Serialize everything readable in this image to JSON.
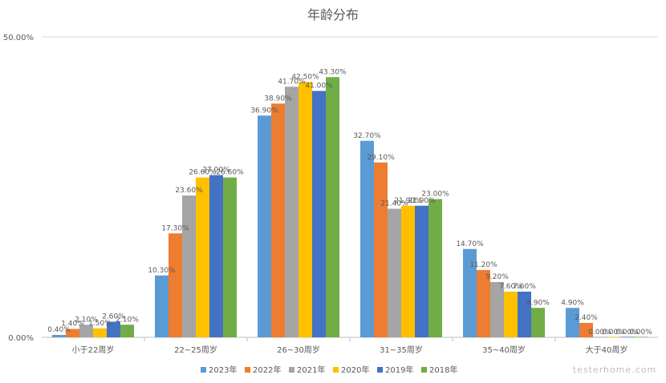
{
  "watermark": "testerhome.com",
  "chart_data": {
    "type": "bar",
    "title": "年龄分布",
    "categories": [
      "小于22周岁",
      "22~25周岁",
      "26~30周岁",
      "31~35周岁",
      "35~40周岁",
      "大于40周岁"
    ],
    "series": [
      {
        "name": "2023年",
        "color": "#5b9bd5",
        "values": [
          0.4,
          10.3,
          36.9,
          32.7,
          14.7,
          4.9
        ]
      },
      {
        "name": "2022年",
        "color": "#ed7d31",
        "values": [
          1.4,
          17.3,
          38.9,
          29.1,
          11.2,
          2.4
        ]
      },
      {
        "name": "2021年",
        "color": "#a5a5a5",
        "values": [
          2.1,
          23.6,
          41.7,
          21.4,
          9.2,
          0.0
        ]
      },
      {
        "name": "2020年",
        "color": "#ffc000",
        "values": [
          1.5,
          26.6,
          42.5,
          21.9,
          7.6,
          0.0
        ]
      },
      {
        "name": "2019年",
        "color": "#4472c4",
        "values": [
          2.6,
          27.0,
          41.0,
          21.9,
          7.6,
          0.0
        ]
      },
      {
        "name": "2018年",
        "color": "#70ad47",
        "values": [
          2.1,
          26.6,
          43.3,
          23.0,
          4.9,
          0.0
        ]
      }
    ],
    "ylim": [
      0,
      50
    ],
    "yticks": [
      "0.00%",
      "50.00%"
    ],
    "value_suffix": "%",
    "grid": true,
    "legend_position": "bottom"
  }
}
